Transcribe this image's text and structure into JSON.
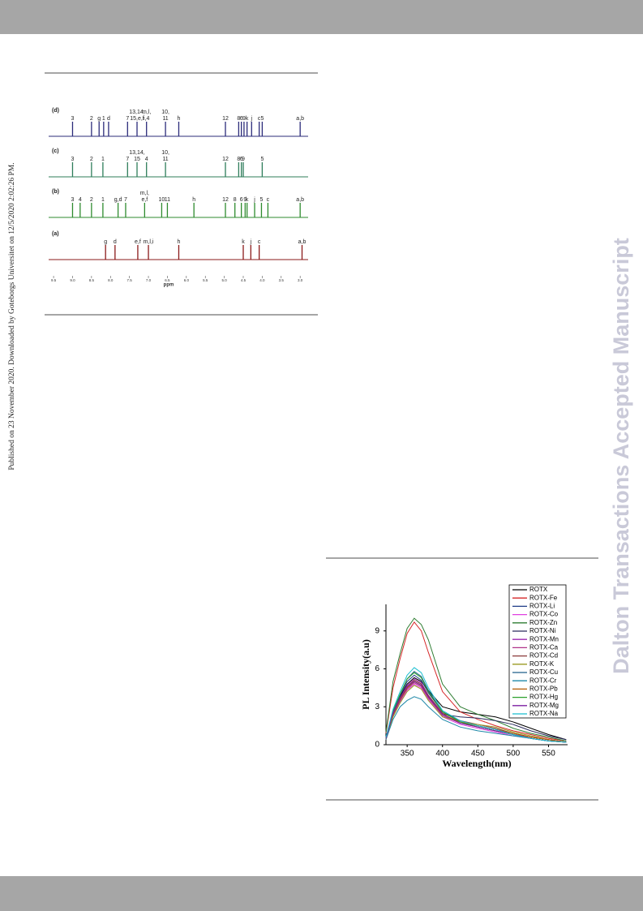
{
  "side_note": "Published on 23 November 2020. Downloaded by Goteborgs Universitet on 12/5/2020 2:02:26 PM.",
  "watermark": "Dalton Transactions Accepted Manuscript",
  "nmr_figure": {
    "axis_label": "ppm",
    "xlim": [
      9.63,
      2.79
    ],
    "xticks": [
      {
        "value": 9.5,
        "label": "9.5"
      },
      {
        "value": 9,
        "label": "9.0"
      },
      {
        "value": 8.5,
        "label": "8.5"
      },
      {
        "value": 8,
        "label": "8.0"
      },
      {
        "value": 7.5,
        "label": "7.5"
      },
      {
        "value": 7,
        "label": "7.0"
      },
      {
        "value": 6.5,
        "label": "6.5"
      },
      {
        "value": 6,
        "label": "6.0"
      },
      {
        "value": 5.5,
        "label": "5.5"
      },
      {
        "value": 5,
        "label": "5.0"
      },
      {
        "value": 4.5,
        "label": "4.5"
      },
      {
        "value": 4,
        "label": "4.0"
      },
      {
        "value": 3.5,
        "label": "3.5"
      },
      {
        "value": 3,
        "label": "3.0"
      }
    ],
    "spectra": [
      {
        "name": "(d)",
        "color": "#2b2b7a",
        "peaks": [
          {
            "label": "3",
            "ppm": 9.0
          },
          {
            "label": "2",
            "ppm": 8.5
          },
          {
            "label": "g",
            "ppm": 8.3
          },
          {
            "label": "1",
            "ppm": 8.18
          },
          {
            "label": "d",
            "ppm": 8.05
          },
          {
            "label": "7",
            "ppm": 7.55
          },
          {
            "label": [
              "13,14,",
              "15,e,f"
            ],
            "ppm": 7.3
          },
          {
            "label": [
              "m,l,",
              "i,4"
            ],
            "ppm": 7.05
          },
          {
            "label": [
              "10,",
              "11"
            ],
            "ppm": 6.55
          },
          {
            "label": "h",
            "ppm": 6.2
          },
          {
            "label": "12",
            "ppm": 4.97
          },
          {
            "label": "8",
            "ppm": 4.62
          },
          {
            "label": "6",
            "ppm": 4.55
          },
          {
            "label": "9",
            "ppm": 4.48
          },
          {
            "label": "k",
            "ppm": 4.4
          },
          {
            "label": "j",
            "ppm": 4.28
          },
          {
            "label": "c",
            "ppm": 4.08
          },
          {
            "label": "5",
            "ppm": 4.0
          },
          {
            "label": "a,b",
            "ppm": 3.0
          }
        ]
      },
      {
        "name": "(c)",
        "color": "#2e7d5a",
        "peaks": [
          {
            "label": "3",
            "ppm": 9.0
          },
          {
            "label": "2",
            "ppm": 8.5
          },
          {
            "label": "1",
            "ppm": 8.2
          },
          {
            "label": "7",
            "ppm": 7.55
          },
          {
            "label": [
              "13,14,",
              "15"
            ],
            "ppm": 7.3
          },
          {
            "label": "4",
            "ppm": 7.05
          },
          {
            "label": [
              "10,",
              "11"
            ],
            "ppm": 6.55
          },
          {
            "label": "12",
            "ppm": 4.97
          },
          {
            "label": "8",
            "ppm": 4.62
          },
          {
            "label": "6",
            "ppm": 4.55
          },
          {
            "label": "9",
            "ppm": 4.5
          },
          {
            "label": "5",
            "ppm": 4.0
          }
        ]
      },
      {
        "name": "(b)",
        "color": "#2e8b2e",
        "peaks": [
          {
            "label": "3",
            "ppm": 9.0
          },
          {
            "label": "4",
            "ppm": 8.8
          },
          {
            "label": "2",
            "ppm": 8.5
          },
          {
            "label": "1",
            "ppm": 8.2
          },
          {
            "label": "g,d",
            "ppm": 7.8
          },
          {
            "label": "7",
            "ppm": 7.6
          },
          {
            "label": [
              "m,l,",
              "e,f"
            ],
            "ppm": 7.1
          },
          {
            "label": "10",
            "ppm": 6.65
          },
          {
            "label": "11",
            "ppm": 6.5
          },
          {
            "label": "h",
            "ppm": 5.8
          },
          {
            "label": "12",
            "ppm": 4.97
          },
          {
            "label": "8",
            "ppm": 4.72
          },
          {
            "label": "6",
            "ppm": 4.55
          },
          {
            "label": "9",
            "ppm": 4.45
          },
          {
            "label": "k",
            "ppm": 4.4
          },
          {
            "label": "j",
            "ppm": 4.2
          },
          {
            "label": "5",
            "ppm": 4.02
          },
          {
            "label": "c",
            "ppm": 3.85
          },
          {
            "label": "a,b",
            "ppm": 3.0
          }
        ]
      },
      {
        "name": "(a)",
        "color": "#8b1a1a",
        "peaks": [
          {
            "label": "g",
            "ppm": 8.13
          },
          {
            "label": "d",
            "ppm": 7.88
          },
          {
            "label": "e,f",
            "ppm": 7.28
          },
          {
            "label": "m,l,i",
            "ppm": 7.0
          },
          {
            "label": "h",
            "ppm": 6.2
          },
          {
            "label": "k",
            "ppm": 4.5
          },
          {
            "label": "j",
            "ppm": 4.3
          },
          {
            "label": "c",
            "ppm": 4.08
          },
          {
            "label": "a,b",
            "ppm": 2.95
          }
        ]
      }
    ]
  },
  "chart_data": {
    "type": "line",
    "x_label": "Wavelength(nm)",
    "y_label": "PL Intensity(a.u)",
    "x": [
      320,
      330,
      340,
      350,
      360,
      370,
      380,
      400,
      425,
      450,
      475,
      500,
      525,
      550,
      575
    ],
    "xlim": [
      320,
      577
    ],
    "xticks": [
      350,
      400,
      450,
      500,
      550
    ],
    "ylim": [
      0,
      11.1
    ],
    "yticks": [
      0,
      3,
      6,
      9
    ],
    "series": [
      {
        "name": "ROTX",
        "color": "#000000",
        "values": [
          0.5,
          2.5,
          3.8,
          4.8,
          5.3,
          5.0,
          4.3,
          3.0,
          2.6,
          2.4,
          2.2,
          1.8,
          1.3,
          0.8,
          0.4
        ]
      },
      {
        "name": "ROTX-Fe",
        "color": "#d62728",
        "values": [
          0.9,
          4.5,
          6.8,
          8.8,
          9.7,
          9.0,
          7.3,
          4.2,
          2.6,
          2.0,
          1.5,
          1.1,
          0.8,
          0.5,
          0.3
        ]
      },
      {
        "name": "ROTX-Li",
        "color": "#1f3c88",
        "values": [
          0.5,
          2.6,
          3.9,
          5.0,
          5.5,
          5.1,
          4.1,
          2.6,
          1.9,
          1.5,
          1.2,
          0.9,
          0.6,
          0.4,
          0.2
        ]
      },
      {
        "name": "ROTX-Co",
        "color": "#e040e0",
        "values": [
          0.4,
          2.3,
          3.4,
          4.3,
          4.8,
          4.5,
          3.6,
          2.2,
          1.6,
          1.3,
          1.0,
          0.7,
          0.5,
          0.3,
          0.2
        ]
      },
      {
        "name": "ROTX-Zn",
        "color": "#2e7d32",
        "values": [
          1.0,
          5.0,
          7.2,
          9.2,
          10.0,
          9.5,
          8.3,
          4.8,
          3.0,
          2.4,
          1.9,
          1.3,
          0.9,
          0.6,
          0.3
        ]
      },
      {
        "name": "ROTX-Ni",
        "color": "#2b2b5c",
        "values": [
          0.4,
          2.4,
          3.5,
          4.5,
          5.0,
          4.7,
          3.8,
          2.4,
          2.2,
          2.1,
          1.9,
          1.6,
          1.1,
          0.7,
          0.4
        ]
      },
      {
        "name": "ROTX-Mn",
        "color": "#9c27b0",
        "values": [
          0.5,
          2.5,
          3.7,
          4.7,
          5.2,
          4.9,
          3.9,
          2.4,
          1.7,
          1.4,
          1.1,
          0.8,
          0.6,
          0.4,
          0.2
        ]
      },
      {
        "name": "ROTX-Ca",
        "color": "#b0338a",
        "values": [
          0.4,
          2.3,
          3.5,
          4.4,
          4.9,
          4.6,
          3.7,
          2.3,
          1.7,
          1.4,
          1.1,
          0.8,
          0.5,
          0.3,
          0.2
        ]
      },
      {
        "name": "ROTX-Cd",
        "color": "#8b3a3a",
        "values": [
          0.5,
          2.4,
          3.6,
          4.6,
          5.1,
          4.8,
          3.9,
          2.5,
          1.9,
          1.6,
          1.3,
          0.9,
          0.6,
          0.4,
          0.2
        ]
      },
      {
        "name": "ROTX-K",
        "color": "#9a9a20",
        "values": [
          0.4,
          2.2,
          3.3,
          4.2,
          4.7,
          4.4,
          3.5,
          2.2,
          1.8,
          1.6,
          1.4,
          1.0,
          0.7,
          0.4,
          0.2
        ]
      },
      {
        "name": "ROTX-Cu",
        "color": "#1f5f8b",
        "values": [
          0.5,
          2.6,
          3.9,
          5.2,
          5.8,
          5.4,
          4.3,
          2.6,
          1.8,
          1.4,
          1.1,
          0.8,
          0.5,
          0.3,
          0.2
        ]
      },
      {
        "name": "ROTX-Cr",
        "color": "#1e88a8",
        "values": [
          0.4,
          2.0,
          3.0,
          3.5,
          3.8,
          3.6,
          3.0,
          2.0,
          1.4,
          1.1,
          0.9,
          0.7,
          0.5,
          0.3,
          0.2
        ]
      },
      {
        "name": "ROTX-Pb",
        "color": "#b35900",
        "values": [
          0.5,
          2.5,
          3.6,
          4.5,
          5.0,
          4.7,
          3.8,
          2.4,
          1.8,
          1.5,
          1.2,
          0.9,
          0.6,
          0.4,
          0.2
        ]
      },
      {
        "name": "ROTX-Hg",
        "color": "#2ca02c",
        "values": [
          0.5,
          2.7,
          4.0,
          5.2,
          5.7,
          5.3,
          4.2,
          2.6,
          1.8,
          1.4,
          1.1,
          0.8,
          0.5,
          0.3,
          0.2
        ]
      },
      {
        "name": "ROTX-Mg",
        "color": "#7b1fa2",
        "values": [
          0.5,
          2.5,
          3.7,
          4.6,
          5.0,
          4.7,
          3.8,
          2.4,
          1.7,
          1.4,
          1.1,
          0.8,
          0.5,
          0.3,
          0.2
        ]
      },
      {
        "name": "ROTX-Na",
        "color": "#17becf",
        "values": [
          0.6,
          2.8,
          4.2,
          5.5,
          6.1,
          5.7,
          4.5,
          2.7,
          1.9,
          1.5,
          1.2,
          0.8,
          0.5,
          0.3,
          0.2
        ]
      }
    ]
  }
}
